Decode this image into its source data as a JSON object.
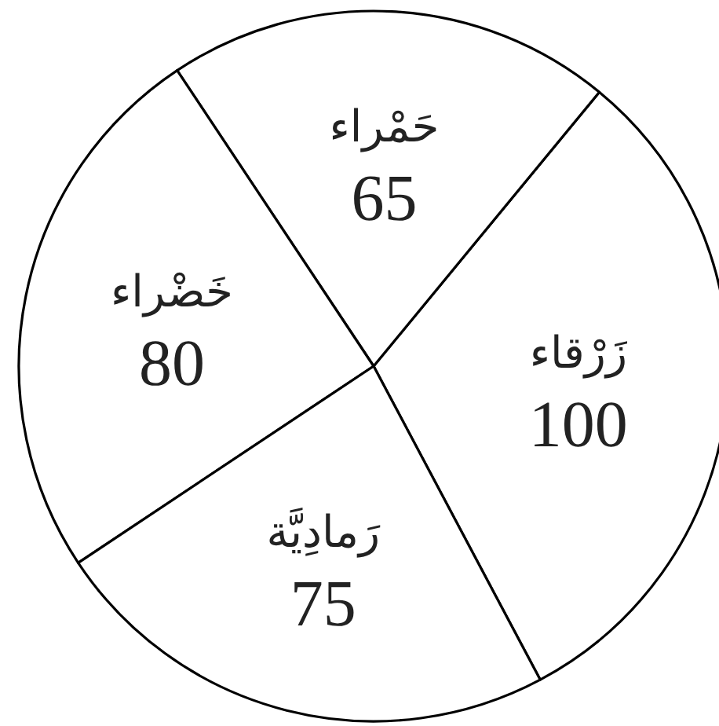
{
  "chart_data": {
    "type": "pie",
    "categories": [
      "زَرْقاء",
      "حَمْراء",
      "خَضْراء",
      "رَمادِيَّة"
    ],
    "values": [
      100,
      65,
      80,
      75
    ],
    "colors": [
      "#ffffff",
      "#ffffff",
      "#ffffff",
      "#ffffff"
    ],
    "data_labels": true
  }
}
